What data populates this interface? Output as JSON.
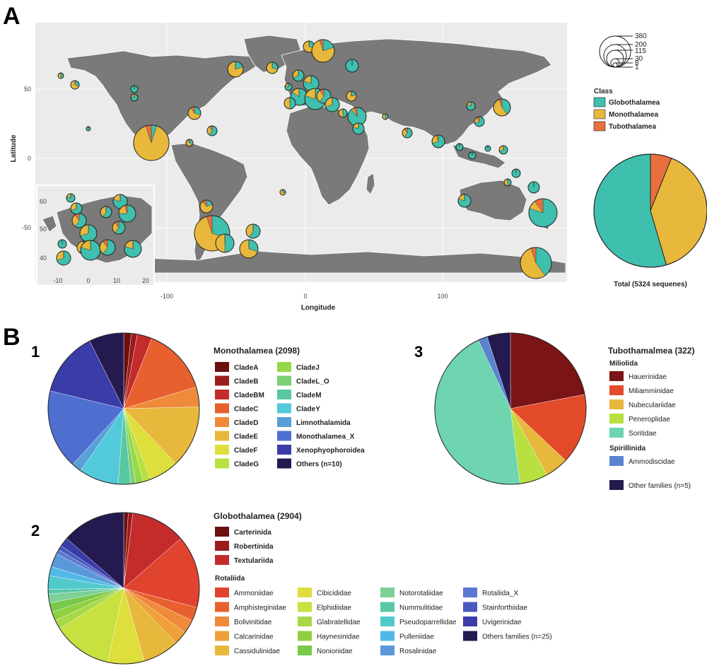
{
  "panel_labels": {
    "a": "A",
    "b": "B",
    "b1": "1",
    "b2": "2",
    "b3": "3"
  },
  "colors": {
    "globo": "#3fbfad",
    "mono": "#e8b83c",
    "tubo": "#e8703e"
  },
  "map": {
    "xlabel": "Longitude",
    "ylabel": "Latitude",
    "xticks": [
      "-100",
      "0",
      "100"
    ],
    "yticks": [
      "50",
      "0",
      "-50"
    ],
    "inset_xticks": [
      "-10",
      "0",
      "10",
      "20"
    ],
    "inset_yticks": [
      "60",
      "50",
      "40"
    ],
    "size_legend": [
      "380",
      "200",
      "115",
      "30",
      "8",
      "1"
    ]
  },
  "class_legend": {
    "title": "Class",
    "items": [
      {
        "label": "Globothalamea",
        "color": "#3fbfad"
      },
      {
        "label": "Monothalamea",
        "color": "#e8b83c"
      },
      {
        "label": "Tubothalamea",
        "color": "#e8703e"
      }
    ]
  },
  "chart_data": [
    {
      "type": "pie",
      "id": "total",
      "xlabel": "Total (5324 sequenes)",
      "categories": [
        "Tubothalamea",
        "Monothalamea",
        "Globothalamea"
      ],
      "values": [
        322,
        2098,
        2904
      ],
      "colors": [
        "#e8703e",
        "#e8b83c",
        "#3fbfad"
      ]
    },
    {
      "type": "pie",
      "id": "mono",
      "title": "Monothalamea (2098)",
      "categories": [
        "CladeA",
        "CladeB",
        "CladeBM",
        "CladeC",
        "CladeD",
        "CladeE",
        "CladeF",
        "CladeG",
        "CladeJ",
        "CladeL_O",
        "CladeM",
        "CladeY",
        "Limnothalamida",
        "Monothalamea_X",
        "Xenophyophoroidea",
        "Others (n=10)"
      ],
      "values": [
        1.5,
        1.2,
        3,
        13.5,
        4,
        12.5,
        6,
        1.5,
        1.5,
        1,
        2.5,
        8,
        2,
        16,
        13,
        7
      ],
      "colors": [
        "#6b1010",
        "#9b1c1c",
        "#c42c2c",
        "#e8602e",
        "#ee8a3a",
        "#e8b83c",
        "#dede3c",
        "#b8e040",
        "#96d848",
        "#7dd078",
        "#58c8a0",
        "#52cadc",
        "#5aa0d8",
        "#4f6fd0",
        "#3a3da8",
        "#241a50"
      ]
    },
    {
      "type": "pie",
      "id": "globo",
      "title": "Globothalamea (2904)",
      "legend_groups": [
        {
          "name": "",
          "items": [
            "Carterinida",
            "Robertinida",
            "Textulariida"
          ]
        },
        {
          "name": "Rotaliida",
          "items": [
            "Ammoniidae",
            "Amphisteginidae",
            "Bolivinitidae",
            "Calcarinidae",
            "Cassidulinidae",
            "Cibicididae",
            "Elphidiidae",
            "Glabratellidae",
            "Haynesinidae",
            "Nonionidae",
            "Notorotaliidae",
            "Nummulitidae",
            "Pseudoparrellidae",
            "Pulleniidae",
            "Rosalinidae",
            "Rotaliida_X",
            "Stainforthiidae",
            "Uvigerinidae",
            "Others families (n=25)"
          ]
        }
      ],
      "categories": [
        "Carterinida",
        "Robertinida",
        "Textulariida",
        "Ammoniidae",
        "Amphisteginidae",
        "Bolivinitidae",
        "Calcarinidae",
        "Cassidulinidae",
        "Cibicididae",
        "Elphidiidae",
        "Glabratellidae",
        "Haynesinidae",
        "Nonionidae",
        "Notorotaliidae",
        "Nummulitidae",
        "Pseudoparrellidae",
        "Pulleniidae",
        "Rosalinidae",
        "Rotaliida_X",
        "Stainforthiidae",
        "Uvigerinidae",
        "Others families (n=25)"
      ],
      "values": [
        1,
        1,
        12,
        16,
        3,
        3,
        3,
        8,
        8,
        13,
        2,
        2,
        2,
        2,
        1,
        3,
        2,
        3,
        1,
        1,
        2,
        14
      ],
      "colors": [
        "#6b1010",
        "#9b1c1c",
        "#c42c2c",
        "#e0442e",
        "#e8602e",
        "#ee8a3a",
        "#f0a03a",
        "#e8b83c",
        "#dede3c",
        "#c8e040",
        "#a8d848",
        "#90d040",
        "#78c84a",
        "#7dd098",
        "#58c8a8",
        "#52cacc",
        "#52b8e8",
        "#5a98d8",
        "#5a78d0",
        "#4a58c0",
        "#3a3da8",
        "#241a50"
      ]
    },
    {
      "type": "pie",
      "id": "tubo",
      "title": "Tubothamalmea (322)",
      "legend_groups": [
        {
          "name": "Miliolida",
          "items": [
            "Hauerinidae",
            "Miliamminidae",
            "Nubeculariidae",
            "Peneroplidae",
            "Soritidae"
          ]
        },
        {
          "name": "Spirillinida",
          "items": [
            "Ammodiscidae"
          ]
        },
        {
          "name": "",
          "items": [
            "Other families (n=5)"
          ]
        }
      ],
      "categories": [
        "Hauerinidae",
        "Miliamminidae",
        "Nubeculariidae",
        "Peneroplidae",
        "Soritidae",
        "Ammodiscidae",
        "Other families (n=5)"
      ],
      "values": [
        22,
        15,
        5,
        6,
        45,
        2,
        5
      ],
      "colors": [
        "#7a1416",
        "#e24a2a",
        "#e8b83c",
        "#b8e040",
        "#6fd4b0",
        "#5a84d0",
        "#241a50"
      ]
    }
  ]
}
